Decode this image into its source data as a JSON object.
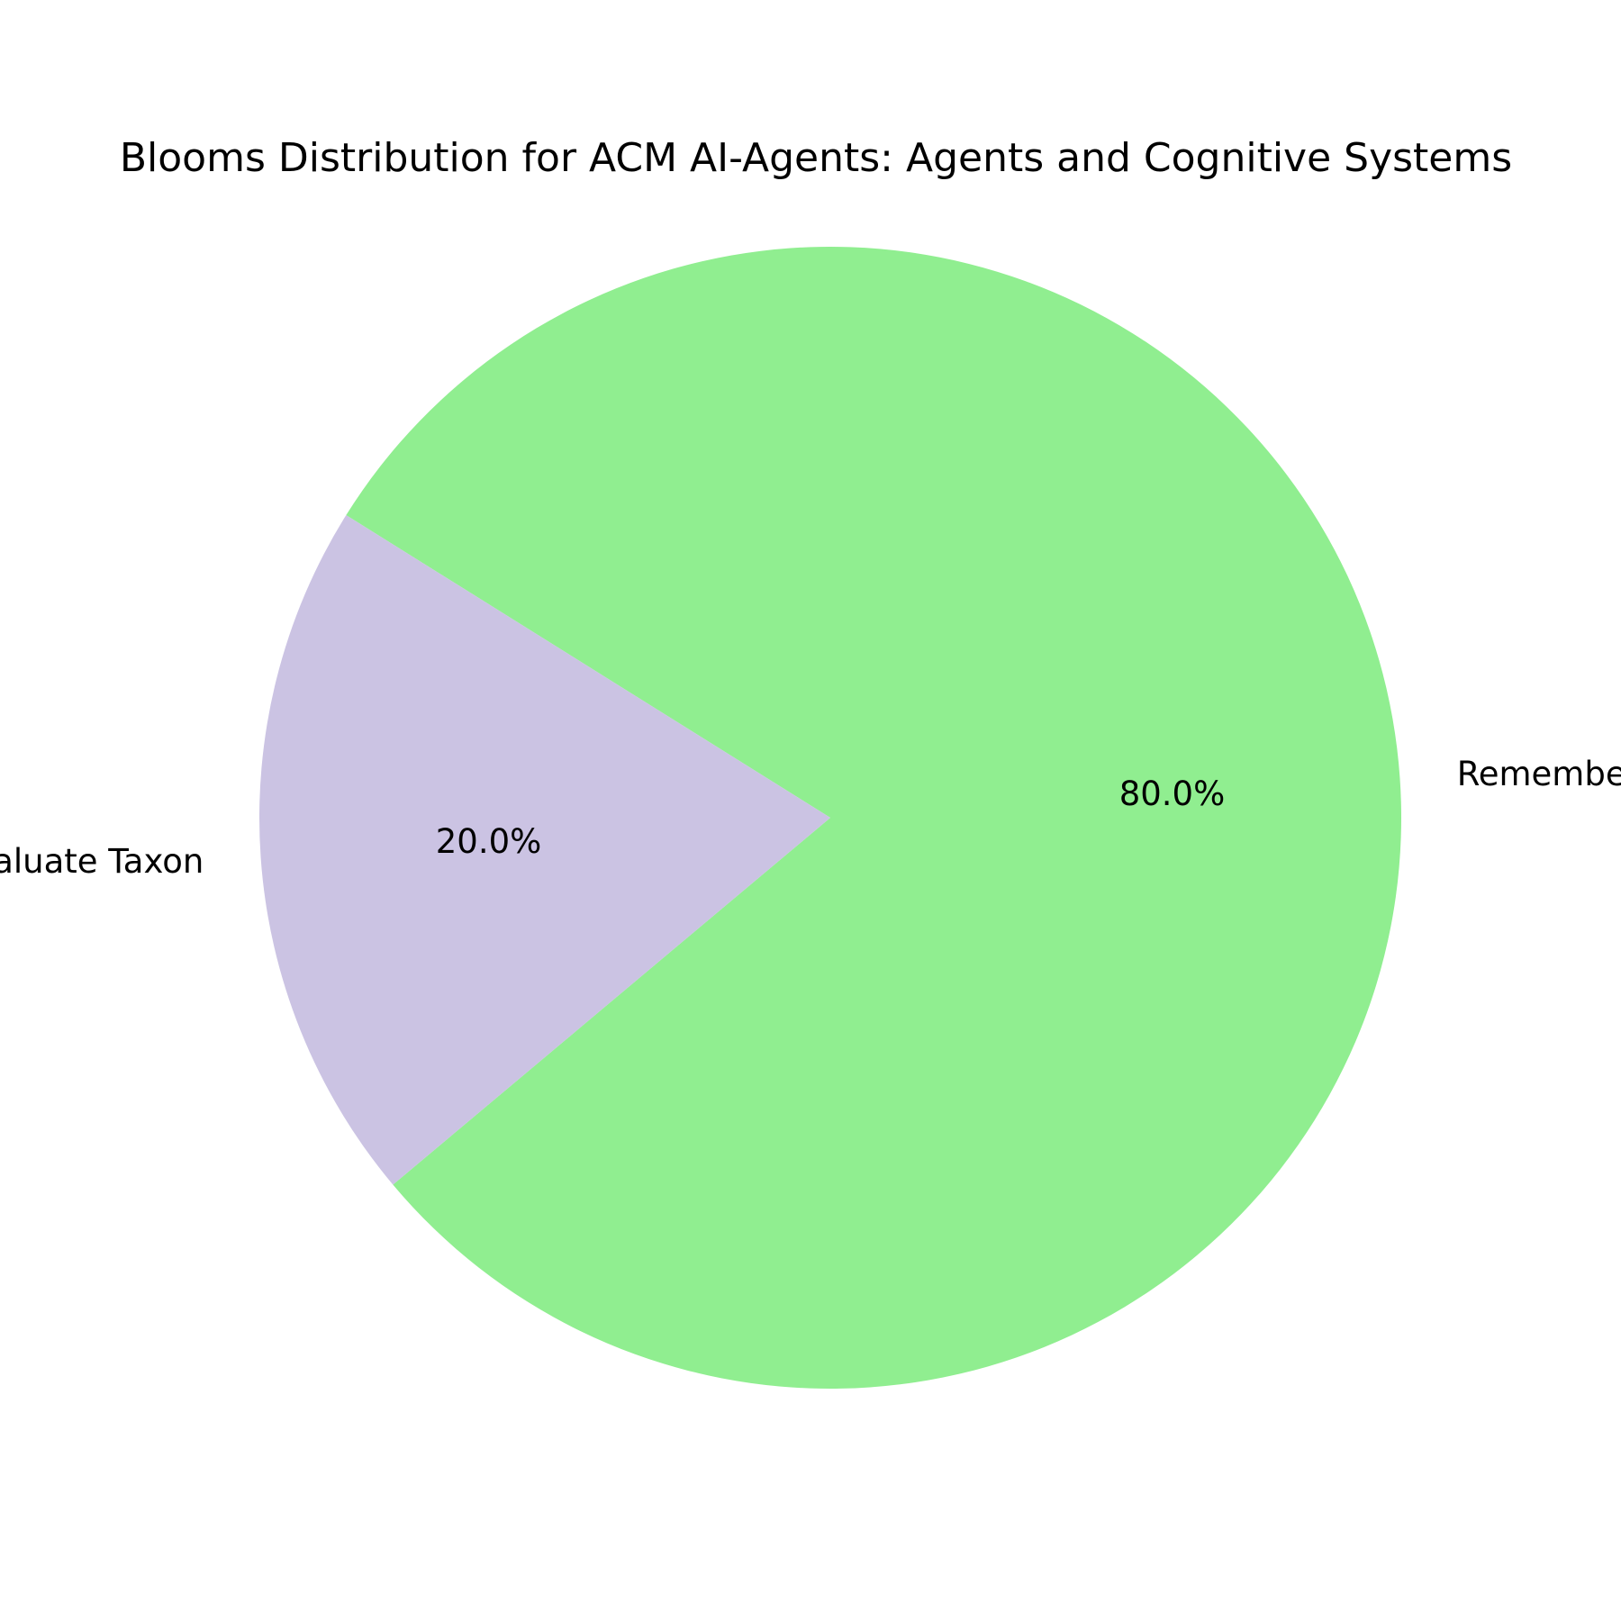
{
  "chart_data": {
    "type": "pie",
    "title": "Blooms Distribution for ACM AI-Agents: Agents and Cognitive Systems",
    "slices": [
      {
        "label": "Remember Taxon",
        "value": 80.0,
        "pct_label": "80.0%",
        "color": "#90ee90"
      },
      {
        "label": "Evaluate Taxon",
        "value": 20.0,
        "pct_label": "20.0%",
        "color": "#cbc3e3"
      }
    ]
  }
}
